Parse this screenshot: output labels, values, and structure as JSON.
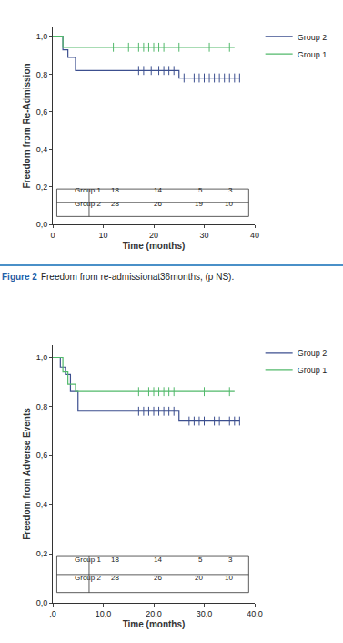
{
  "chart_data": [
    {
      "type": "line",
      "line_style": "step",
      "marker": "cross",
      "legend": "right",
      "x_label": "Time (months)",
      "y_label": "Freedom from Re-Admission",
      "xlim": [
        0,
        40
      ],
      "xticks": [
        0,
        10,
        20,
        30,
        40
      ],
      "ylim": [
        0,
        1.05
      ],
      "yticks": [
        {
          "value": 0,
          "label": "0,0"
        },
        {
          "value": 0.2,
          "label": "0,2"
        },
        {
          "value": 0.4,
          "label": "0,4"
        },
        {
          "value": 0.6,
          "label": "0,6"
        },
        {
          "value": 0.8,
          "label": "0,8"
        },
        {
          "value": 1,
          "label": "1,0"
        }
      ],
      "series": [
        {
          "name": "Group 2",
          "color": "#3c4f8f",
          "x": [
            0,
            2,
            3,
            4.5,
            25,
            37
          ],
          "values": [
            1,
            0.93,
            0.89,
            0.82,
            0.78,
            0.78
          ],
          "censored_x": [
            17,
            18,
            19.5,
            21,
            22,
            23,
            24,
            26,
            28,
            29,
            30,
            31,
            32,
            33,
            34,
            35,
            36,
            37
          ],
          "censored_values": [
            0.82,
            0.82,
            0.82,
            0.82,
            0.82,
            0.82,
            0.82,
            0.78,
            0.78,
            0.78,
            0.78,
            0.78,
            0.78,
            0.78,
            0.78,
            0.78,
            0.78,
            0.78
          ]
        },
        {
          "name": "Group 1",
          "color": "#52b96b",
          "x": [
            0,
            2,
            36
          ],
          "values": [
            1,
            0.944,
            0.944
          ],
          "censored_x": [
            12,
            15,
            17,
            18,
            19,
            20,
            21,
            22,
            25,
            31,
            35
          ],
          "censored_values": [
            0.944,
            0.944,
            0.944,
            0.944,
            0.944,
            0.944,
            0.944,
            0.944,
            0.944,
            0.944,
            0.944
          ]
        }
      ],
      "risk_table": {
        "rows": [
          {
            "name": "Group 1",
            "values": [
              18,
              14,
              5,
              3
            ]
          },
          {
            "name": "Group 2",
            "values": [
              28,
              26,
              19,
              10
            ]
          }
        ]
      },
      "caption": {
        "label": "Figure 2",
        "text": "Freedom from re-admissionat36months, (p NS)."
      }
    },
    {
      "type": "line",
      "line_style": "step",
      "marker": "cross",
      "legend": "right",
      "x_label": "Time (months)",
      "y_label": "Freedom from Adverse Events",
      "xlim": [
        0,
        40
      ],
      "xticks": [
        {
          "value": 0,
          "label": ",0"
        },
        {
          "value": 10,
          "label": "10,0"
        },
        {
          "value": 20,
          "label": "20,0"
        },
        {
          "value": 30,
          "label": "30,0"
        },
        {
          "value": 40,
          "label": "40,0"
        }
      ],
      "ylim": [
        0,
        1.05
      ],
      "yticks": [
        {
          "value": 0,
          "label": "0,0"
        },
        {
          "value": 0.2,
          "label": "0,2"
        },
        {
          "value": 0.4,
          "label": "0,4"
        },
        {
          "value": 0.6,
          "label": "0,6"
        },
        {
          "value": 0.8,
          "label": "0,8"
        },
        {
          "value": 1,
          "label": "1,0"
        }
      ],
      "series": [
        {
          "name": "Group 2",
          "color": "#3c4f8f",
          "x": [
            0,
            1.5,
            2.5,
            3.5,
            5,
            25,
            37
          ],
          "values": [
            1,
            0.96,
            0.93,
            0.86,
            0.78,
            0.74,
            0.74
          ],
          "censored_x": [
            17,
            18,
            19,
            20,
            21,
            22,
            23,
            24,
            27,
            28,
            29,
            30,
            32,
            33,
            35,
            36,
            37
          ],
          "censored_values": [
            0.78,
            0.78,
            0.78,
            0.78,
            0.78,
            0.78,
            0.78,
            0.78,
            0.74,
            0.74,
            0.74,
            0.74,
            0.74,
            0.74,
            0.74,
            0.74,
            0.74
          ]
        },
        {
          "name": "Group 1",
          "color": "#52b96b",
          "x": [
            0,
            2,
            3,
            4.5,
            36
          ],
          "values": [
            1,
            0.94,
            0.89,
            0.86,
            0.86
          ],
          "censored_x": [
            17,
            19,
            20,
            21,
            22,
            23,
            24,
            30,
            35
          ],
          "censored_values": [
            0.86,
            0.86,
            0.86,
            0.86,
            0.86,
            0.86,
            0.86,
            0.86,
            0.86
          ]
        }
      ],
      "risk_table": {
        "rows": [
          {
            "name": "Group 1",
            "values": [
              18,
              14,
              5,
              3
            ]
          },
          {
            "name": "Group 2",
            "values": [
              28,
              26,
              20,
              10
            ]
          }
        ]
      }
    }
  ]
}
